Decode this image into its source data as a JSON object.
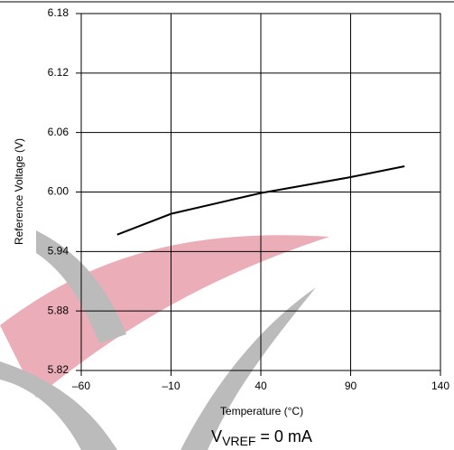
{
  "chart_data": {
    "type": "line",
    "x_label": "Temperature (°C)",
    "y_label": "Reference Voltage (V)",
    "annotation": {
      "symbol": "V",
      "subscript": "VREF",
      "text": "= 0 mA"
    },
    "x": [
      -40,
      -10,
      40,
      90,
      120
    ],
    "series": [
      {
        "color": "#000000",
        "values": [
          5.957,
          5.978,
          5.999,
          6.015,
          6.026
        ]
      }
    ],
    "xlim": [
      -60,
      140
    ],
    "xticks": [
      {
        "value": -60,
        "label": "–60"
      },
      {
        "value": -10,
        "label": "–10"
      },
      40,
      90,
      140
    ],
    "ylim": [
      5.82,
      6.18
    ],
    "yticks": [
      5.82,
      5.88,
      5.94,
      {
        "value": 6,
        "label": "6.00"
      },
      6.06,
      6.12,
      6.18
    ],
    "grid": true
  }
}
